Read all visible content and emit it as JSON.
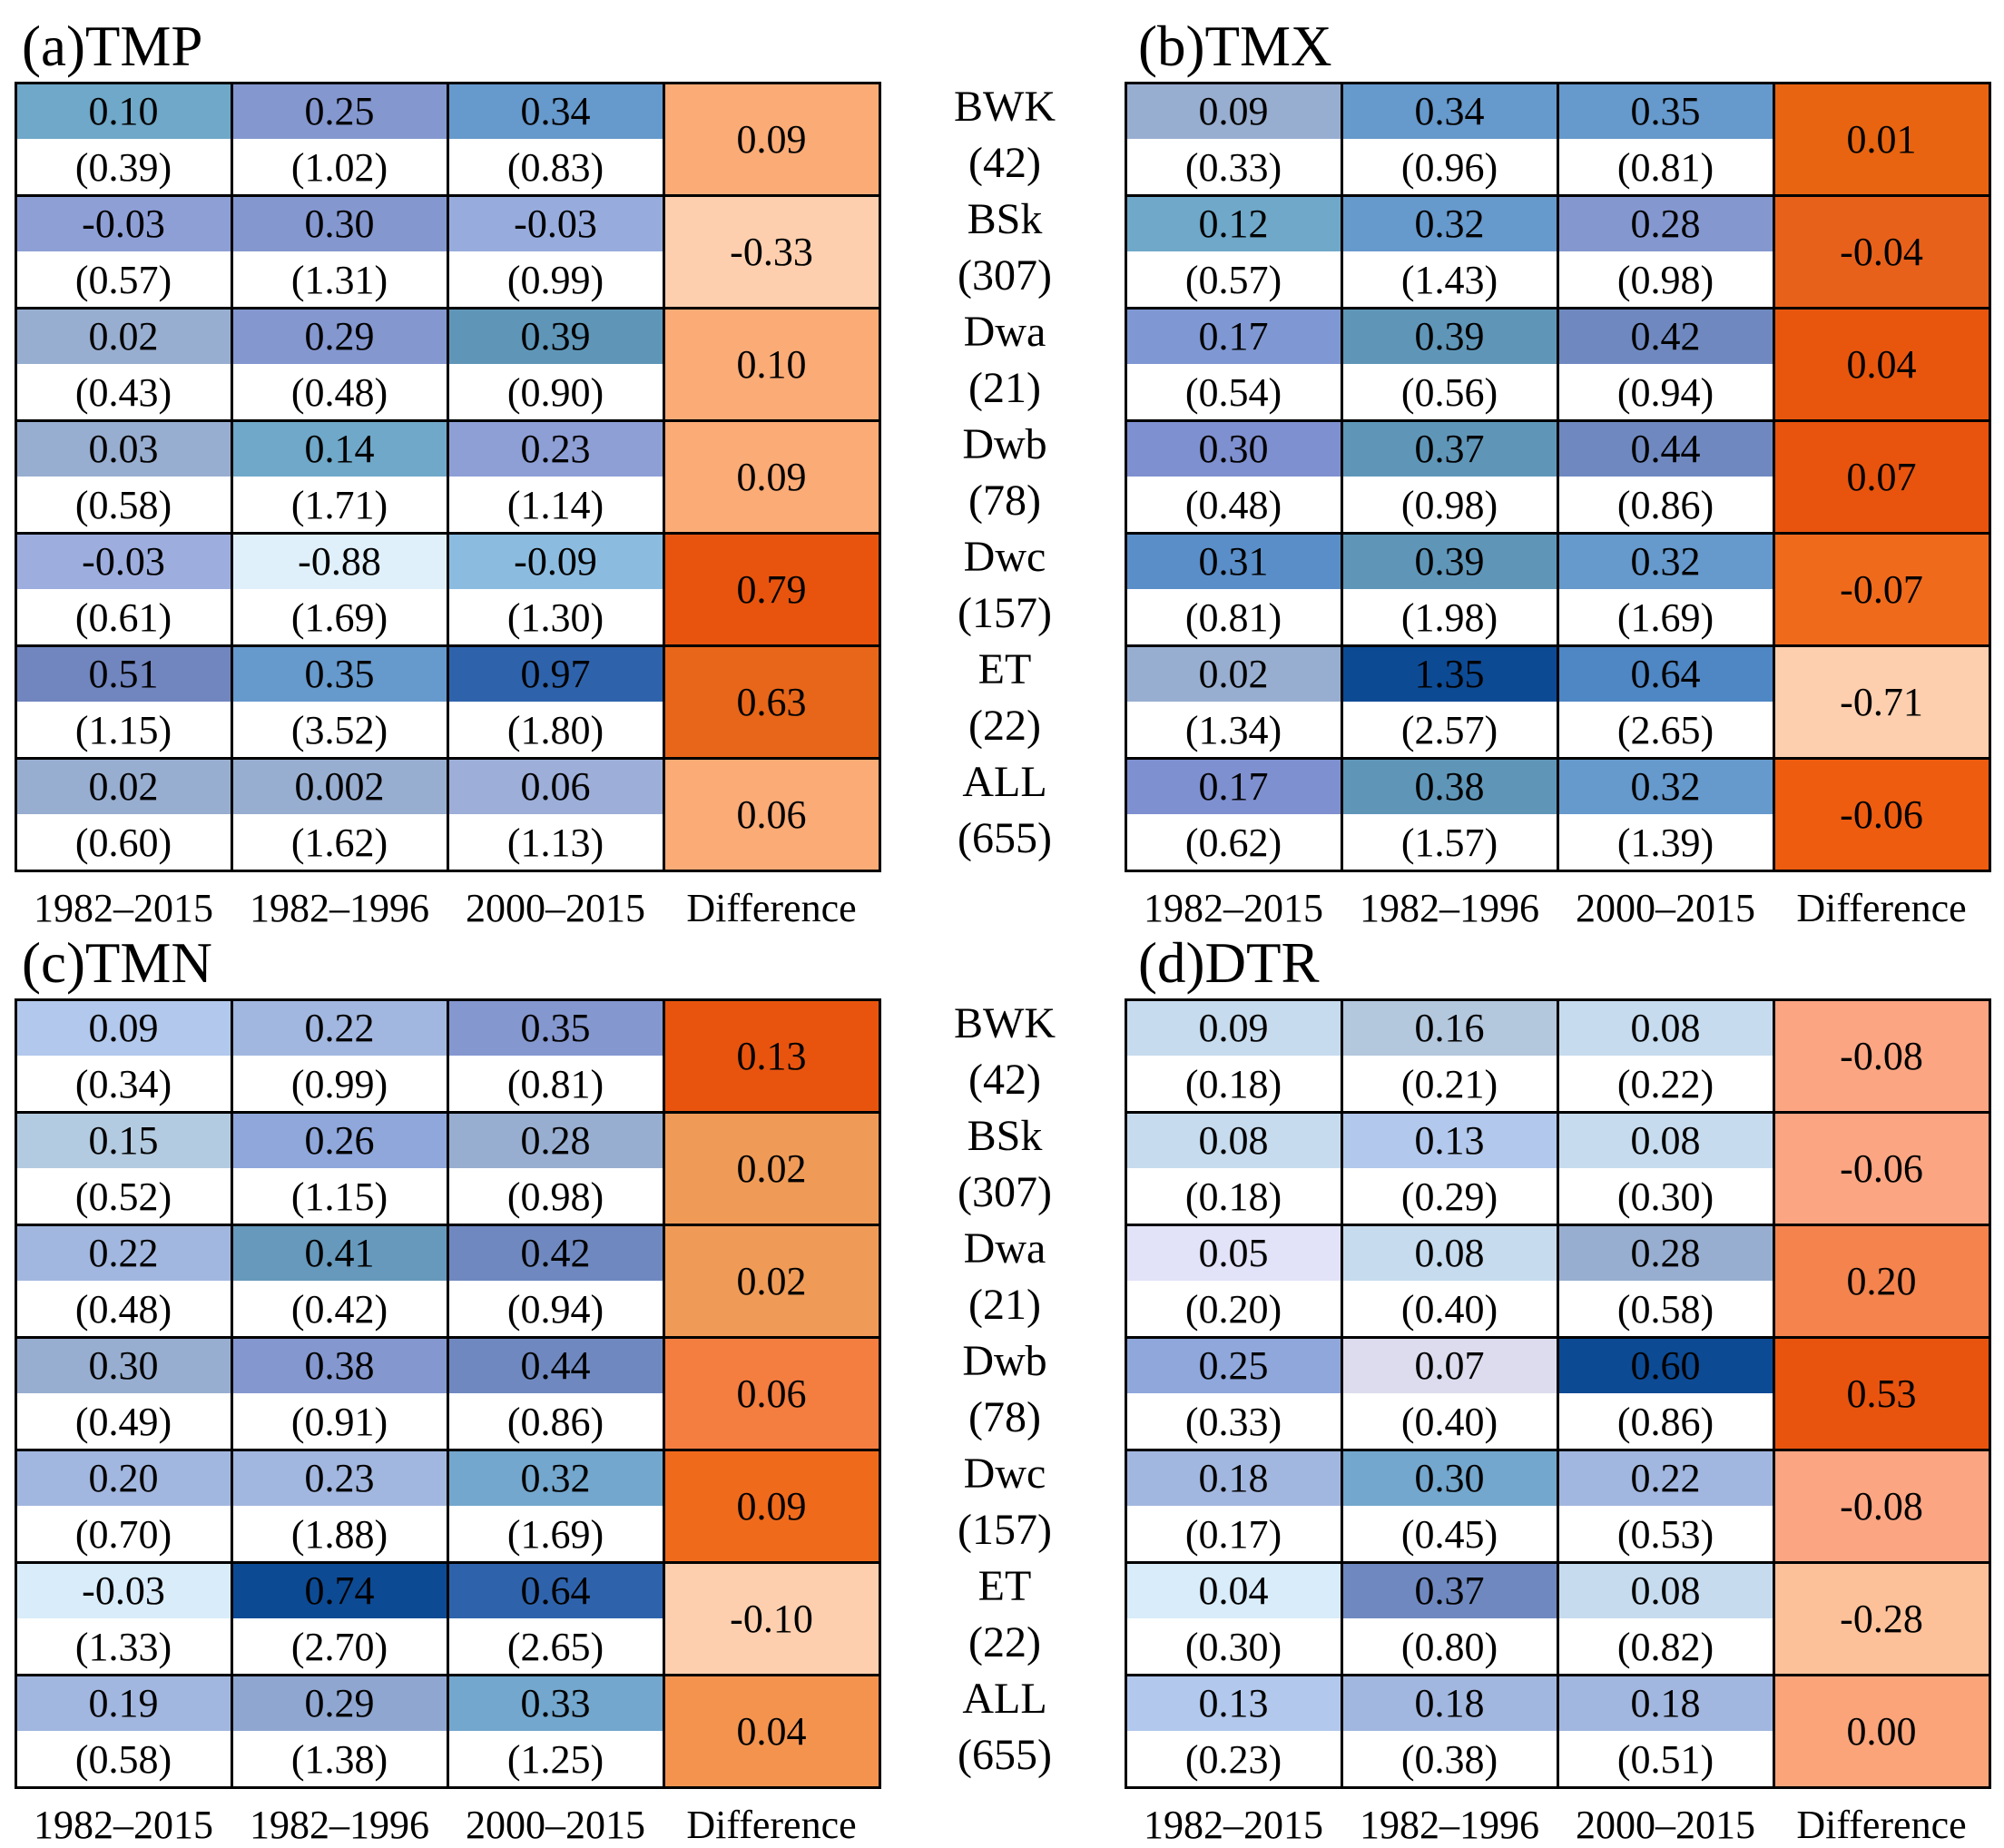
{
  "chart_data": {
    "type": "heatmap",
    "column_labels": [
      "1982–2015",
      "1982–1996",
      "2000–2015",
      "Difference"
    ],
    "row_labels": [
      {
        "name": "BWK",
        "count": "(42)"
      },
      {
        "name": "BSk",
        "count": "(307)"
      },
      {
        "name": "Dwa",
        "count": "(21)"
      },
      {
        "name": "Dwb",
        "count": "(78)"
      },
      {
        "name": "Dwc",
        "count": "(157)"
      },
      {
        "name": "ET",
        "count": "(22)"
      },
      {
        "name": "ALL",
        "count": "(655)"
      }
    ],
    "panels": [
      {
        "title": "(a)TMP",
        "rows": [
          {
            "values": [
              "0.10",
              "0.25",
              "0.34"
            ],
            "sds": [
              "(0.39)",
              "(1.02)",
              "(0.83)"
            ],
            "difference": "0.09",
            "colors": [
              "#6fa8c8",
              "#8497cf",
              "#6699cc"
            ],
            "diff_color": "#fbab76"
          },
          {
            "values": [
              "-0.03",
              "0.30",
              "-0.03"
            ],
            "sds": [
              "(0.57)",
              "(1.31)",
              "(0.99)"
            ],
            "difference": "-0.33",
            "colors": [
              "#8e9fd6",
              "#8497cf",
              "#97acdd"
            ],
            "diff_color": "#fdcfae"
          },
          {
            "values": [
              "0.02",
              "0.29",
              "0.39"
            ],
            "sds": [
              "(0.43)",
              "(0.48)",
              "(0.90)"
            ],
            "difference": "0.10",
            "colors": [
              "#98aed0",
              "#8497cf",
              "#5f96b8"
            ],
            "diff_color": "#fbab76"
          },
          {
            "values": [
              "0.03",
              "0.14",
              "0.23"
            ],
            "sds": [
              "(0.58)",
              "(1.71)",
              "(1.14)"
            ],
            "difference": "0.09",
            "colors": [
              "#98aed0",
              "#6fa8c8",
              "#8e9fd6"
            ],
            "diff_color": "#fbab76"
          },
          {
            "values": [
              "-0.03",
              "-0.88",
              "-0.09"
            ],
            "sds": [
              "(0.61)",
              "(1.69)",
              "(1.30)"
            ],
            "difference": "0.79",
            "colors": [
              "#9dadde",
              "#dff0fb",
              "#8bbce0"
            ],
            "diff_color": "#e8540e"
          },
          {
            "values": [
              "0.51",
              "0.35",
              "0.97"
            ],
            "sds": [
              "(1.15)",
              "(3.52)",
              "(1.80)"
            ],
            "difference": "0.63",
            "colors": [
              "#7185bf",
              "#6699cc",
              "#2e63ac"
            ],
            "diff_color": "#e86619"
          },
          {
            "values": [
              "0.02",
              "0.002",
              "0.06"
            ],
            "sds": [
              "(0.60)",
              "(1.62)",
              "(1.13)"
            ],
            "difference": "0.06",
            "colors": [
              "#98aed0",
              "#98aed0",
              "#9daed9"
            ],
            "diff_color": "#fbab76"
          }
        ]
      },
      {
        "title": "(b)TMX",
        "rows": [
          {
            "values": [
              "0.09",
              "0.34",
              "0.35"
            ],
            "sds": [
              "(0.33)",
              "(0.96)",
              "(0.81)"
            ],
            "difference": "0.01",
            "colors": [
              "#98aed0",
              "#6699cc",
              "#6699cc"
            ],
            "diff_color": "#e86410"
          },
          {
            "values": [
              "0.12",
              "0.32",
              "0.28"
            ],
            "sds": [
              "(0.57)",
              "(1.43)",
              "(0.98)"
            ],
            "difference": "-0.04",
            "colors": [
              "#6fa8c8",
              "#6699cc",
              "#8497cf"
            ],
            "diff_color": "#e8611b"
          },
          {
            "values": [
              "0.17",
              "0.39",
              "0.42"
            ],
            "sds": [
              "(0.54)",
              "(0.56)",
              "(0.94)"
            ],
            "difference": "0.04",
            "colors": [
              "#7f98d3",
              "#5f96b8",
              "#6f89c0"
            ],
            "diff_color": "#e8560e"
          },
          {
            "values": [
              "0.30",
              "0.37",
              "0.44"
            ],
            "sds": [
              "(0.48)",
              "(0.98)",
              "(0.86)"
            ],
            "difference": "0.07",
            "colors": [
              "#7f90d0",
              "#5f96b8",
              "#6f89c0"
            ],
            "diff_color": "#e8540e"
          },
          {
            "values": [
              "0.31",
              "0.39",
              "0.32"
            ],
            "sds": [
              "(0.81)",
              "(1.98)",
              "(1.69)"
            ],
            "difference": "-0.07",
            "colors": [
              "#5a8ec8",
              "#5f96b8",
              "#6699cc"
            ],
            "diff_color": "#f06a1c"
          },
          {
            "values": [
              "0.02",
              "1.35",
              "0.64"
            ],
            "sds": [
              "(1.34)",
              "(2.57)",
              "(2.65)"
            ],
            "difference": "-0.71",
            "colors": [
              "#98aed0",
              "#0d4a94",
              "#4f86c4"
            ],
            "diff_color": "#fdcfae"
          },
          {
            "values": [
              "0.17",
              "0.38",
              "0.32"
            ],
            "sds": [
              "(0.62)",
              "(1.57)",
              "(1.39)"
            ],
            "difference": "-0.06",
            "colors": [
              "#7f90d0",
              "#5f96b8",
              "#6699cc"
            ],
            "diff_color": "#ee5c10"
          }
        ]
      },
      {
        "title": "(c)TMN",
        "rows": [
          {
            "values": [
              "0.09",
              "0.22",
              "0.35"
            ],
            "sds": [
              "(0.34)",
              "(0.99)",
              "(0.81)"
            ],
            "difference": "0.13",
            "colors": [
              "#b2c8ec",
              "#a2b7df",
              "#8497cf"
            ],
            "diff_color": "#e8540e"
          },
          {
            "values": [
              "0.15",
              "0.26",
              "0.28"
            ],
            "sds": [
              "(0.52)",
              "(1.15)",
              "(0.98)"
            ],
            "difference": "0.02",
            "colors": [
              "#b3cbe0",
              "#8fa7db",
              "#98aed0"
            ],
            "diff_color": "#ef9b57"
          },
          {
            "values": [
              "0.22",
              "0.41",
              "0.42"
            ],
            "sds": [
              "(0.48)",
              "(0.42)",
              "(0.94)"
            ],
            "difference": "0.02",
            "colors": [
              "#a2b7df",
              "#6699bb",
              "#6f89c0"
            ],
            "diff_color": "#ef9b57"
          },
          {
            "values": [
              "0.30",
              "0.38",
              "0.44"
            ],
            "sds": [
              "(0.49)",
              "(0.91)",
              "(0.86)"
            ],
            "difference": "0.06",
            "colors": [
              "#98aed0",
              "#8497cf",
              "#6f89c0"
            ],
            "diff_color": "#f47d40"
          },
          {
            "values": [
              "0.20",
              "0.23",
              "0.32"
            ],
            "sds": [
              "(0.70)",
              "(1.88)",
              "(1.69)"
            ],
            "difference": "0.09",
            "colors": [
              "#a2b7df",
              "#a2b7df",
              "#73a7cd"
            ],
            "diff_color": "#f06a1c"
          },
          {
            "values": [
              "-0.03",
              "0.74",
              "0.64"
            ],
            "sds": [
              "(1.33)",
              "(2.70)",
              "(2.65)"
            ],
            "difference": "-0.10",
            "colors": [
              "#d8ecfa",
              "#0d4a94",
              "#2e63ac"
            ],
            "diff_color": "#fdcfae"
          },
          {
            "values": [
              "0.19",
              "0.29",
              "0.33"
            ],
            "sds": [
              "(0.58)",
              "(1.38)",
              "(1.25)"
            ],
            "difference": "0.04",
            "colors": [
              "#a2b7df",
              "#8fa7d0",
              "#73a7cd"
            ],
            "diff_color": "#f4934e"
          }
        ]
      },
      {
        "title": "(d)DTR",
        "rows": [
          {
            "values": [
              "0.09",
              "0.16",
              "0.08"
            ],
            "sds": [
              "(0.18)",
              "(0.21)",
              "(0.22)"
            ],
            "difference": "-0.08",
            "colors": [
              "#c6dbee",
              "#b3c7dd",
              "#c6dbee"
            ],
            "diff_color": "#fba582"
          },
          {
            "values": [
              "0.08",
              "0.13",
              "0.08"
            ],
            "sds": [
              "(0.18)",
              "(0.29)",
              "(0.30)"
            ],
            "difference": "-0.06",
            "colors": [
              "#c6dbee",
              "#b2c8ec",
              "#c6dbee"
            ],
            "diff_color": "#fba582"
          },
          {
            "values": [
              "0.05",
              "0.08",
              "0.28"
            ],
            "sds": [
              "(0.20)",
              "(0.40)",
              "(0.58)"
            ],
            "difference": "0.20",
            "colors": [
              "#e2e2f8",
              "#c6dbee",
              "#98aed0"
            ],
            "diff_color": "#f4834d"
          },
          {
            "values": [
              "0.25",
              "0.07",
              "0.60"
            ],
            "sds": [
              "(0.33)",
              "(0.40)",
              "(0.86)"
            ],
            "difference": "0.53",
            "colors": [
              "#8fa7db",
              "#dcdcee",
              "#0d4a94"
            ],
            "diff_color": "#e8540e"
          },
          {
            "values": [
              "0.18",
              "0.30",
              "0.22"
            ],
            "sds": [
              "(0.17)",
              "(0.45)",
              "(0.53)"
            ],
            "difference": "-0.08",
            "colors": [
              "#a2b7df",
              "#73a7cd",
              "#a2b7df"
            ],
            "diff_color": "#fba582"
          },
          {
            "values": [
              "0.04",
              "0.37",
              "0.08"
            ],
            "sds": [
              "(0.30)",
              "(0.80)",
              "(0.82)"
            ],
            "difference": "-0.28",
            "colors": [
              "#d8ecfa",
              "#6f89c0",
              "#c6dbee"
            ],
            "diff_color": "#fdc19a"
          },
          {
            "values": [
              "0.13",
              "0.18",
              "0.18"
            ],
            "sds": [
              "(0.23)",
              "(0.38)",
              "(0.51)"
            ],
            "difference": "0.00",
            "colors": [
              "#b2c8ec",
              "#a2b7df",
              "#a2b7df"
            ],
            "diff_color": "#fba47a"
          }
        ]
      }
    ]
  }
}
